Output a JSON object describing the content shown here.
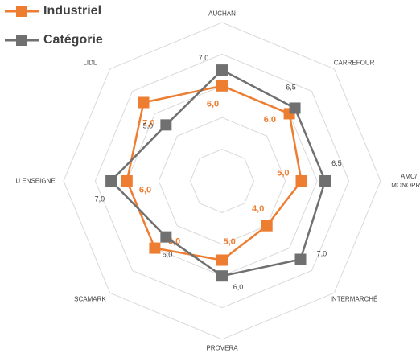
{
  "chart_data": {
    "type": "radar",
    "categories": [
      "AUCHAN",
      "CARREFOUR",
      "AMC/ MONOPRIX",
      "INTERMARCHÉ",
      "PROVERA",
      "SCAMARK",
      "U ENSEIGNE",
      "LIDL"
    ],
    "series": [
      {
        "name": "Industriel",
        "color": "#ED7D31",
        "values": [
          6.0,
          6.0,
          5.0,
          4.0,
          5.0,
          6.0,
          6.0,
          7.0
        ],
        "value_labels": [
          "6,0",
          "6,0",
          "5,0",
          "4,0",
          "5,0",
          "6,0",
          "6,0",
          "7,0"
        ]
      },
      {
        "name": "Catégorie",
        "color": "#707070",
        "values": [
          7.0,
          6.5,
          6.5,
          7.0,
          6.0,
          5.0,
          7.0,
          5.0
        ],
        "value_labels": [
          "7,0",
          "6,5",
          "6,5",
          "7,0",
          "6,0",
          "5,0",
          "7,0",
          "5,0"
        ]
      }
    ],
    "rlim": [
      0,
      10
    ],
    "rticks": [
      2,
      4,
      6,
      8,
      10
    ],
    "grid": true,
    "legend": "top-left"
  }
}
